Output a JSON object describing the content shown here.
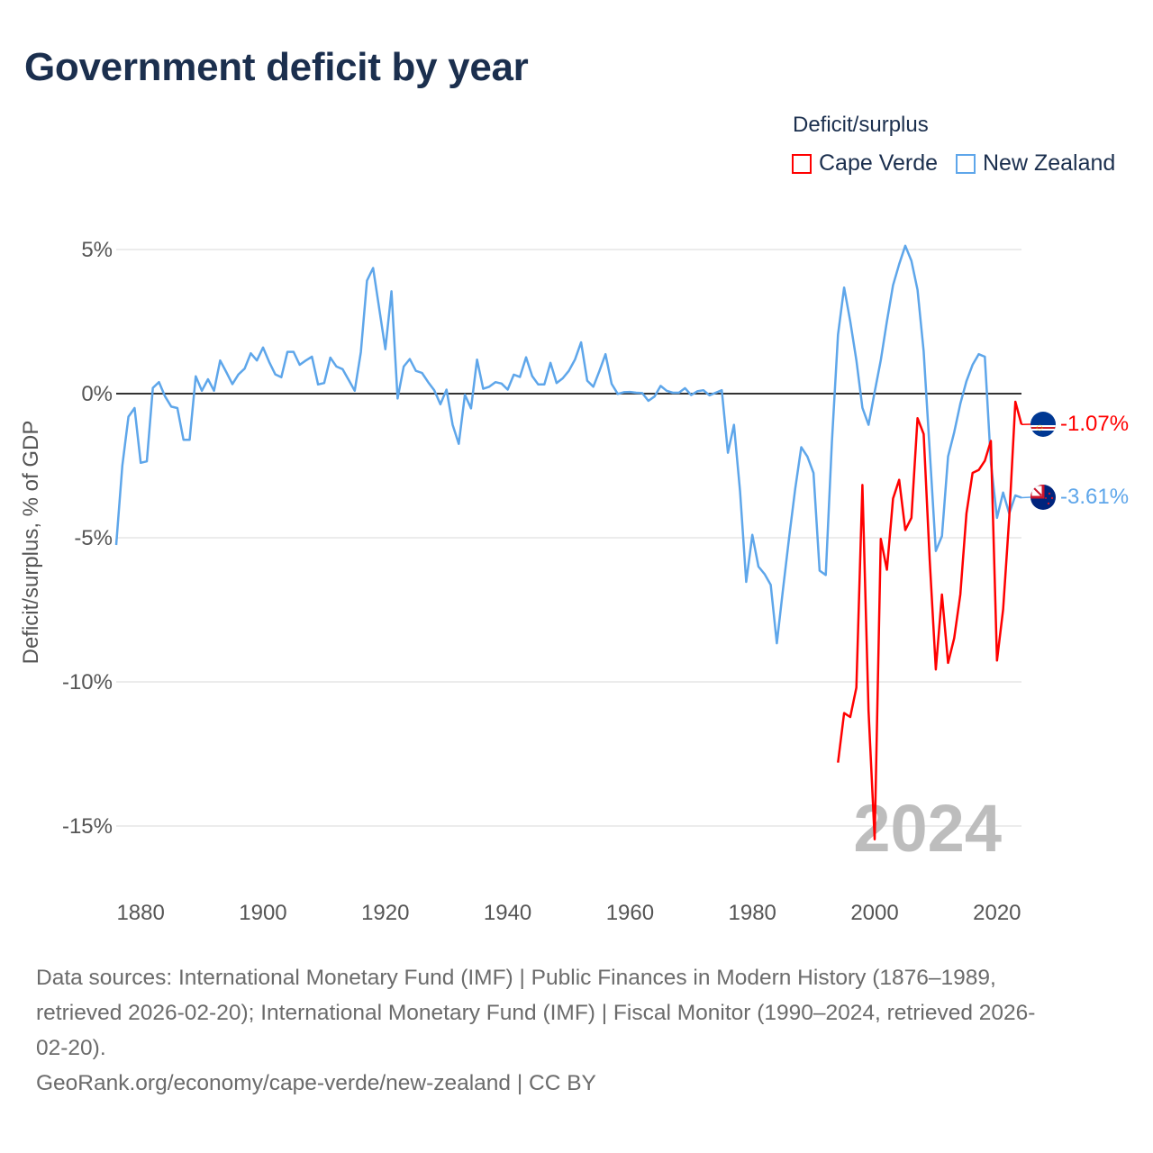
{
  "title": "Government deficit by year",
  "legend": {
    "title": "Deficit/surplus",
    "items": [
      {
        "label": "Cape Verde",
        "color": "#ff0000"
      },
      {
        "label": "New Zealand",
        "color": "#5ea6ea"
      }
    ]
  },
  "chart_data": {
    "type": "line",
    "title": "Government deficit by year",
    "xlabel": "",
    "ylabel": "Deficit/surplus, % of GDP",
    "xlim": [
      1876,
      2024
    ],
    "ylim": [
      -17,
      5.5
    ],
    "grid": true,
    "legend_position": "top-right",
    "x_ticks": [
      1880,
      1900,
      1920,
      1940,
      1960,
      1980,
      2000,
      2020
    ],
    "x_tick_labels": [
      "1880",
      "1900",
      "1920",
      "1940",
      "1960",
      "1980",
      "2000",
      "2020"
    ],
    "y_ticks": [
      5,
      0,
      -5,
      -10,
      -15
    ],
    "y_tick_labels": [
      "5%",
      "0%",
      "-5%",
      "-10%",
      "-15%"
    ],
    "year_watermark": "2024",
    "series": [
      {
        "name": "New Zealand",
        "color": "#5ea6ea",
        "start_year": 1876,
        "end_label": "-3.61%",
        "values": [
          -5.25,
          -2.5,
          -0.8,
          -0.5,
          -2.4,
          -2.35,
          0.2,
          0.4,
          -0.1,
          -0.45,
          -0.5,
          -1.6,
          -1.6,
          0.6,
          0.1,
          0.5,
          0.1,
          1.15,
          0.75,
          0.33,
          0.67,
          0.87,
          1.4,
          1.15,
          1.6,
          1.1,
          0.67,
          0.57,
          1.45,
          1.45,
          1.0,
          1.15,
          1.28,
          0.32,
          0.37,
          1.25,
          0.94,
          0.85,
          0.48,
          0.1,
          1.44,
          3.92,
          4.36,
          2.95,
          1.54,
          3.55,
          -0.17,
          0.94,
          1.2,
          0.79,
          0.72,
          0.4,
          0.12,
          -0.37,
          0.14,
          -1.08,
          -1.74,
          -0.04,
          -0.51,
          1.18,
          0.17,
          0.24,
          0.4,
          0.35,
          0.14,
          0.66,
          0.58,
          1.26,
          0.61,
          0.32,
          0.32,
          1.07,
          0.37,
          0.53,
          0.79,
          1.18,
          1.78,
          0.45,
          0.24,
          0.79,
          1.37,
          0.34,
          -0.01,
          0.05,
          0.06,
          0.03,
          0.02,
          -0.25,
          -0.1,
          0.27,
          0.1,
          0.03,
          0.03,
          0.19,
          -0.05,
          0.08,
          0.12,
          -0.06,
          0.03,
          0.12,
          -2.05,
          -1.08,
          -3.4,
          -6.53,
          -4.9,
          -6.0,
          -6.26,
          -6.63,
          -8.66,
          -6.8,
          -5.0,
          -3.3,
          -1.86,
          -2.18,
          -2.75,
          -6.14,
          -6.29,
          -1.7,
          2.04,
          3.68,
          2.51,
          1.16,
          -0.49,
          -1.08,
          0.06,
          1.16,
          2.51,
          3.76,
          4.49,
          5.13,
          4.61,
          3.6,
          1.47,
          -1.97,
          -5.46,
          -4.94,
          -2.18,
          -1.34,
          -0.35,
          0.43,
          1.0,
          1.37,
          1.28,
          -2.38,
          -4.31,
          -3.43,
          -4.16,
          -3.53,
          -3.61
        ]
      },
      {
        "name": "Cape Verde",
        "color": "#ff0000",
        "start_year": 1994,
        "end_label": "-1.07%",
        "values": [
          -12.8,
          -11.08,
          -11.22,
          -10.2,
          -3.17,
          -11.0,
          -15.46,
          -5.04,
          -6.11,
          -3.64,
          -2.99,
          -4.73,
          -4.31,
          -0.85,
          -1.4,
          -5.77,
          -9.57,
          -6.97,
          -9.34,
          -8.48,
          -6.97,
          -4.16,
          -2.75,
          -2.65,
          -2.33,
          -1.64,
          -9.26,
          -7.49,
          -4.3,
          -0.28,
          -1.07
        ]
      }
    ]
  },
  "footer": {
    "sources_line1": "Data sources: International Monetary Fund (IMF) | Public Finances in Modern History (1876–1989,",
    "sources_line2": "retrieved 2026-02-20); International Monetary Fund (IMF) | Fiscal Monitor (1990–2024, retrieved 2026-",
    "sources_line3": "02-20).",
    "attribution": "GeoRank.org/economy/cape-verde/new-zealand | CC BY"
  }
}
